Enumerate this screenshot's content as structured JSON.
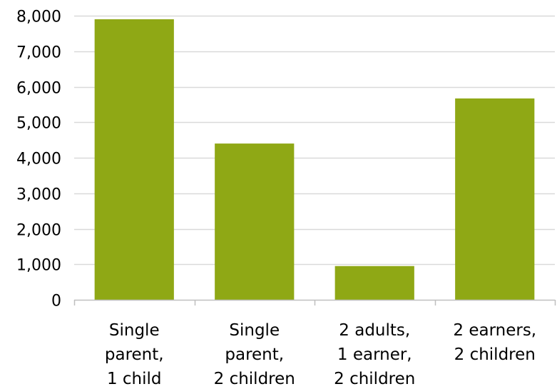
{
  "chart_data": {
    "type": "bar",
    "categories": [
      [
        "Single",
        "parent,",
        "1 child"
      ],
      [
        "Single",
        "parent,",
        "2 children"
      ],
      [
        "2 adults,",
        "1 earner,",
        "2 children"
      ],
      [
        "2 earners,",
        "2 children"
      ]
    ],
    "values": [
      7900,
      4400,
      950,
      5670
    ],
    "ylim": [
      0,
      8000
    ],
    "yticks": [
      "0",
      "1,000",
      "2,000",
      "3,000",
      "4,000",
      "5,000",
      "6,000",
      "7,000",
      "8,000"
    ],
    "title": "",
    "xlabel": "",
    "ylabel": "",
    "grid": true,
    "legend": "none"
  },
  "colors": {
    "bar": "#8fa815",
    "grid": "#d9d9d9",
    "axis": "#bfbfbf"
  }
}
